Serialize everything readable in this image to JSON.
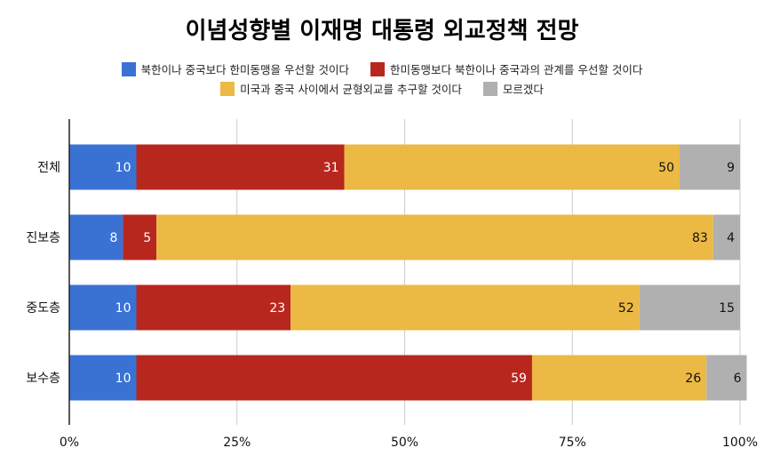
{
  "chart_data": {
    "type": "bar",
    "orientation": "horizontal",
    "stacked": true,
    "normalized": true,
    "title": "이념성향별 이재명 대통령 외교정책 전망",
    "categories": [
      "전체",
      "진보층",
      "중도층",
      "보수층"
    ],
    "series": [
      {
        "name": "북한이나 중국보다 한미동맹을 우선할 것이다",
        "color": "#3a72d4",
        "values": [
          10,
          8,
          10,
          10
        ]
      },
      {
        "name": "한미동맹보다 북한이나 중국과의 관계를 우선할 것이다",
        "color": "#b8271e",
        "values": [
          31,
          5,
          23,
          59
        ]
      },
      {
        "name": "미국과 중국 사이에서 균형외교를 추구할 것이다",
        "color": "#ebb944",
        "values": [
          50,
          83,
          52,
          26
        ]
      },
      {
        "name": "모르겠다",
        "color": "#b0b0b0",
        "values": [
          9,
          4,
          15,
          6
        ]
      }
    ],
    "xticks": [
      "0%",
      "25%",
      "50%",
      "75%",
      "100%"
    ],
    "xlim": [
      0,
      100
    ],
    "grid": true,
    "legend": "top"
  }
}
